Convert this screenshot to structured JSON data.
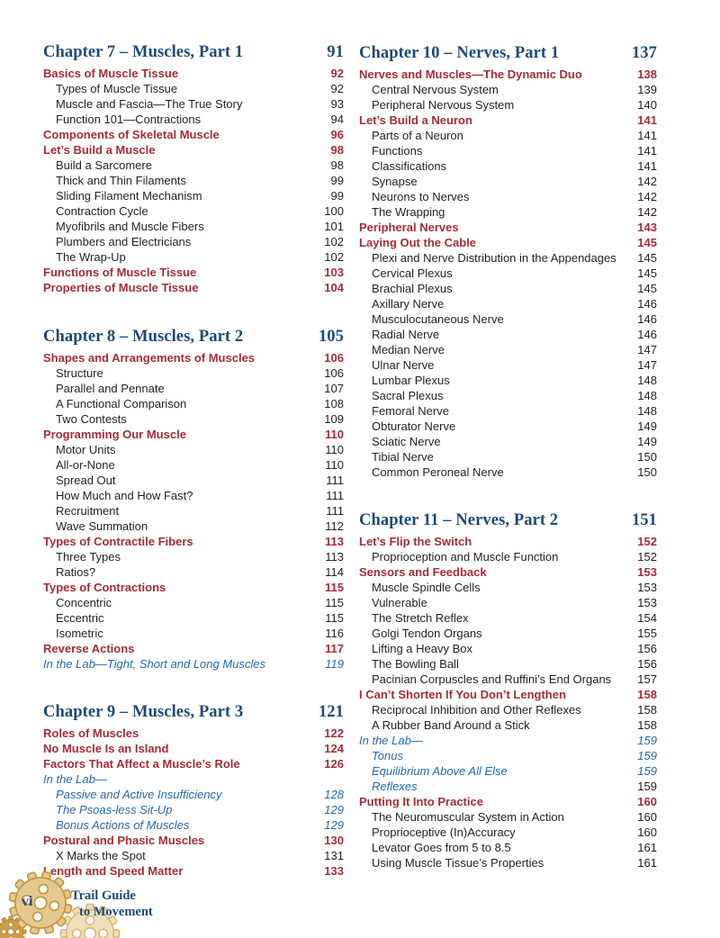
{
  "footer": {
    "folio": "vi",
    "brand_line1": "Trail Guide",
    "brand_line2": "to Movement"
  },
  "colors": {
    "chapter_blue": "#1E4A77",
    "section_red": "#A72B38",
    "lab_blue": "#2368AE",
    "body_black": "#231F20",
    "gear_dark": "#C6953F",
    "gear_mid": "#E3C98F",
    "gear_light": "#EFDFB8"
  },
  "columns": [
    {
      "blocks": [
        {
          "id": "ch7",
          "chapter": "Chapter 7 – Muscles, Part 1",
          "page": "91",
          "entries": [
            {
              "label": "Basics of Muscle Tissue",
              "page": "92",
              "type": "section"
            },
            {
              "label": "Types of Muscle Tissue",
              "page": "92",
              "type": "sub"
            },
            {
              "label": "Muscle and Fascia—The True Story",
              "page": "93",
              "type": "sub"
            },
            {
              "label": "Function 101—Contractions",
              "page": "94",
              "type": "sub"
            },
            {
              "label": "Components of Skeletal Muscle",
              "page": "96",
              "type": "section"
            },
            {
              "label": "Let’s Build a Muscle",
              "page": "98",
              "type": "section"
            },
            {
              "label": "Build a Sarcomere",
              "page": "98",
              "type": "sub"
            },
            {
              "label": "Thick and Thin Filaments",
              "page": "99",
              "type": "sub"
            },
            {
              "label": "Sliding Filament Mechanism",
              "page": "99",
              "type": "sub"
            },
            {
              "label": "Contraction Cycle",
              "page": "100",
              "type": "sub"
            },
            {
              "label": "Myofibrils and Muscle Fibers",
              "page": "101",
              "type": "sub"
            },
            {
              "label": "Plumbers and Electricians",
              "page": "102",
              "type": "sub"
            },
            {
              "label": "The Wrap-Up",
              "page": "102",
              "type": "sub"
            },
            {
              "label": "Functions of Muscle Tissue",
              "page": "103",
              "type": "section"
            },
            {
              "label": "Properties of Muscle Tissue",
              "page": "104",
              "type": "section"
            }
          ]
        },
        {
          "id": "ch8",
          "chapter": "Chapter 8 – Muscles, Part 2",
          "page": "105",
          "entries": [
            {
              "label": "Shapes and Arrangements of Muscles",
              "page": "106",
              "type": "section"
            },
            {
              "label": "Structure",
              "page": "106",
              "type": "sub"
            },
            {
              "label": "Parallel and Pennate",
              "page": "107",
              "type": "sub"
            },
            {
              "label": "A Functional Comparison",
              "page": "108",
              "type": "sub"
            },
            {
              "label": "Two Contests",
              "page": "109",
              "type": "sub"
            },
            {
              "label": "Programming Our Muscle",
              "page": "110",
              "type": "section"
            },
            {
              "label": "Motor Units",
              "page": "110",
              "type": "sub"
            },
            {
              "label": "All-or-None",
              "page": "110",
              "type": "sub"
            },
            {
              "label": "Spread Out",
              "page": "111",
              "type": "sub"
            },
            {
              "label": "How Much and How Fast?",
              "page": "111",
              "type": "sub"
            },
            {
              "label": "Recruitment",
              "page": "111",
              "type": "sub"
            },
            {
              "label": "Wave Summation",
              "page": "112",
              "type": "sub"
            },
            {
              "label": "Types of Contractile Fibers",
              "page": "113",
              "type": "section"
            },
            {
              "label": "Three Types",
              "page": "113",
              "type": "sub"
            },
            {
              "label": "Ratios?",
              "page": "114",
              "type": "sub"
            },
            {
              "label": "Types of Contractions",
              "page": "115",
              "type": "section"
            },
            {
              "label": "Concentric",
              "page": "115",
              "type": "sub"
            },
            {
              "label": "Eccentric",
              "page": "115",
              "type": "sub"
            },
            {
              "label": "Isometric",
              "page": "116",
              "type": "sub"
            },
            {
              "label": "Reverse Actions",
              "page": "117",
              "type": "section"
            },
            {
              "label": "In the Lab—Tight, Short and Long Muscles",
              "page": "119",
              "type": "lab"
            }
          ]
        },
        {
          "id": "ch9",
          "chapter": "Chapter 9 – Muscles, Part 3",
          "page": "121",
          "entries": [
            {
              "label": "Roles of Muscles",
              "page": "122",
              "type": "section"
            },
            {
              "label": "No Muscle Is an Island",
              "page": "124",
              "type": "section"
            },
            {
              "label": "Factors That Affect a Muscle’s Role",
              "page": "126",
              "type": "section"
            },
            {
              "label": "In the Lab—",
              "page": "",
              "type": "lab"
            },
            {
              "label": "Passive and Active Insufficiency",
              "page": "128",
              "type": "lab2"
            },
            {
              "label": "The Psoas-less Sit-Up",
              "page": "129",
              "type": "lab2"
            },
            {
              "label": "Bonus Actions of Muscles",
              "page": "129",
              "type": "lab2"
            },
            {
              "label": "Postural and Phasic Muscles",
              "page": "130",
              "type": "section"
            },
            {
              "label": "X Marks the Spot",
              "page": "131",
              "type": "sub"
            },
            {
              "label": "Length and Speed Matter",
              "page": "133",
              "type": "section"
            }
          ]
        }
      ]
    },
    {
      "blocks": [
        {
          "id": "ch10",
          "chapter": "Chapter 10 – Nerves, Part 1",
          "page": "137",
          "entries": [
            {
              "label": "Nerves and Muscles—The Dynamic Duo",
              "page": "138",
              "type": "section"
            },
            {
              "label": "Central Nervous System",
              "page": "139",
              "type": "sub"
            },
            {
              "label": "Peripheral Nervous System",
              "page": "140",
              "type": "sub"
            },
            {
              "label": "Let’s Build a Neuron",
              "page": "141",
              "type": "section"
            },
            {
              "label": "Parts of a Neuron",
              "page": "141",
              "type": "sub"
            },
            {
              "label": "Functions",
              "page": "141",
              "type": "sub"
            },
            {
              "label": "Classifications",
              "page": "141",
              "type": "sub"
            },
            {
              "label": "Synapse",
              "page": "142",
              "type": "sub"
            },
            {
              "label": "Neurons to Nerves",
              "page": "142",
              "type": "sub"
            },
            {
              "label": "The Wrapping",
              "page": "142",
              "type": "sub"
            },
            {
              "label": "Peripheral Nerves",
              "page": "143",
              "type": "section"
            },
            {
              "label": "Laying Out the Cable",
              "page": "145",
              "type": "section"
            },
            {
              "label": "Plexi and Nerve Distribution in the Appendages",
              "page": "145",
              "type": "sub"
            },
            {
              "label": "Cervical Plexus",
              "page": "145",
              "type": "sub"
            },
            {
              "label": "Brachial Plexus",
              "page": "145",
              "type": "sub"
            },
            {
              "label": "Axillary Nerve",
              "page": "146",
              "type": "sub"
            },
            {
              "label": "Musculocutaneous Nerve",
              "page": "146",
              "type": "sub"
            },
            {
              "label": "Radial Nerve",
              "page": "146",
              "type": "sub"
            },
            {
              "label": "Median Nerve",
              "page": "147",
              "type": "sub"
            },
            {
              "label": "Ulnar Nerve",
              "page": "147",
              "type": "sub"
            },
            {
              "label": "Lumbar Plexus",
              "page": "148",
              "type": "sub"
            },
            {
              "label": "Sacral Plexus",
              "page": "148",
              "type": "sub"
            },
            {
              "label": "Femoral Nerve",
              "page": "148",
              "type": "sub"
            },
            {
              "label": "Obturator Nerve",
              "page": "149",
              "type": "sub"
            },
            {
              "label": "Sciatic Nerve",
              "page": "149",
              "type": "sub"
            },
            {
              "label": "Tibial Nerve",
              "page": "150",
              "type": "sub"
            },
            {
              "label": "Common Peroneal Nerve",
              "page": "150",
              "type": "sub"
            }
          ]
        },
        {
          "id": "ch11",
          "chapter": "Chapter 11 – Nerves, Part 2",
          "page": "151",
          "entries": [
            {
              "label": "Let’s Flip the Switch",
              "page": "152",
              "type": "section"
            },
            {
              "label": "Proprioception and Muscle Function",
              "page": "152",
              "type": "sub"
            },
            {
              "label": "Sensors and Feedback",
              "page": "153",
              "type": "section"
            },
            {
              "label": "Muscle Spindle Cells",
              "page": "153",
              "type": "sub"
            },
            {
              "label": "Vulnerable",
              "page": "153",
              "type": "sub"
            },
            {
              "label": "The Stretch Reflex",
              "page": "154",
              "type": "sub"
            },
            {
              "label": "Golgi Tendon Organs",
              "page": "155",
              "type": "sub"
            },
            {
              "label": "Lifting a Heavy Box",
              "page": "156",
              "type": "sub"
            },
            {
              "label": "The Bowling Ball",
              "page": "156",
              "type": "sub"
            },
            {
              "label": "Pacinian Corpuscles and Ruffini’s End Organs",
              "page": "157",
              "type": "sub"
            },
            {
              "label": "I Can’t Shorten If You Don’t Lengthen",
              "page": "158",
              "type": "section"
            },
            {
              "label": "Reciprocal Inhibition and Other Reflexes",
              "page": "158",
              "type": "sub"
            },
            {
              "label": "A Rubber Band Around a Stick",
              "page": "158",
              "type": "sub"
            },
            {
              "label": "In the Lab—",
              "page": "159",
              "type": "lab"
            },
            {
              "label": "Tonus",
              "page": "159",
              "type": "lab2"
            },
            {
              "label": "Equilibrium Above All Else",
              "page": "159",
              "type": "lab2"
            },
            {
              "label": "Reflexes",
              "page": "159",
              "type": "lab2",
              "page_plain": true
            },
            {
              "label": "Putting It Into Practice",
              "page": "160",
              "type": "section"
            },
            {
              "label": "The Neuromuscular System in Action",
              "page": "160",
              "type": "sub"
            },
            {
              "label": "Proprioceptive (In)Accuracy",
              "page": "160",
              "type": "sub"
            },
            {
              "label": "Levator Goes from 5 to 8.5",
              "page": "161",
              "type": "sub"
            },
            {
              "label": "Using Muscle Tissue’s Properties",
              "page": "161",
              "type": "sub"
            }
          ]
        }
      ]
    }
  ]
}
